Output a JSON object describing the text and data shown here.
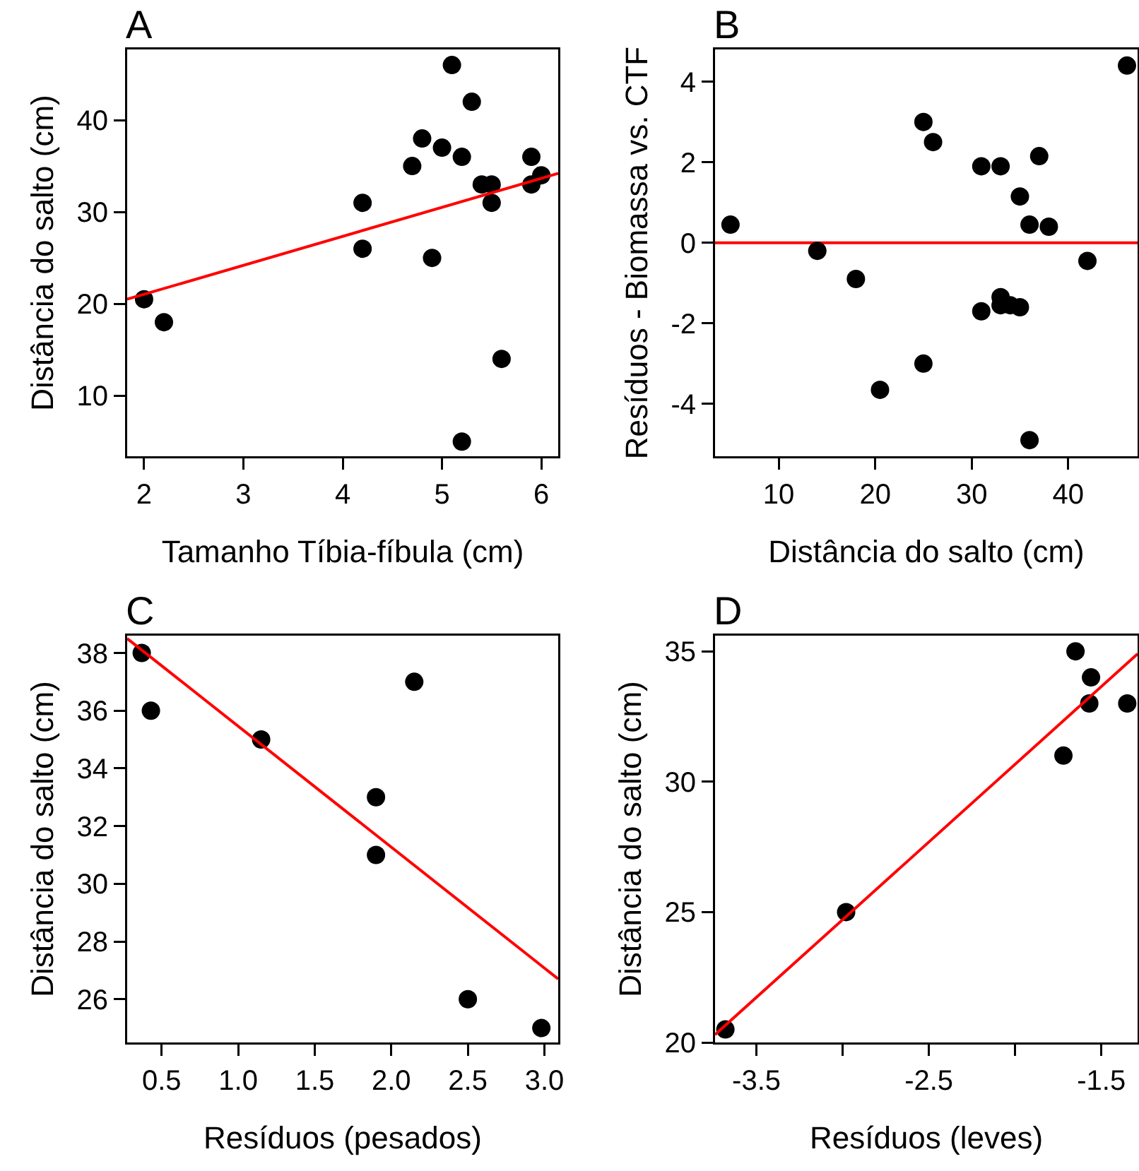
{
  "chart_data": [
    {
      "type": "scatter",
      "title": "A",
      "xlabel": "Tamanho Tíbia-fíbula (cm)",
      "ylabel": "Distância do salto (cm)",
      "xlim": [
        1.83,
        6.17
      ],
      "ylim": [
        3.4,
        47.7
      ],
      "xticks": [
        2,
        3,
        4,
        5,
        6
      ],
      "yticks": [
        10,
        20,
        30,
        40
      ],
      "series": [
        {
          "marker": "circle",
          "color": "#000000",
          "x": [
            2.0,
            2.2,
            4.2,
            4.2,
            4.7,
            4.8,
            4.9,
            5.0,
            5.1,
            5.2,
            5.2,
            5.3,
            5.4,
            5.5,
            5.5,
            5.6,
            5.9,
            5.9,
            6.0
          ],
          "values": [
            20.5,
            18,
            31,
            26,
            35,
            38,
            25,
            37,
            46,
            36,
            5,
            42,
            33,
            33,
            31,
            14,
            36,
            33,
            34
          ]
        },
        {
          "type": "line",
          "marker": "none",
          "color": "#ff0000",
          "x": [
            1.83,
            6.17
          ],
          "values": [
            20.5,
            34.2
          ]
        }
      ]
    },
    {
      "type": "scatter",
      "title": "B",
      "xlabel": "Distância do salto (cm)",
      "ylabel": "Resíduos - Biomassa vs. CTF",
      "xlim": [
        3.4,
        47.2
      ],
      "ylim": [
        -5.3,
        4.8
      ],
      "xticks": [
        10,
        20,
        30,
        40
      ],
      "yticks": [
        -4,
        -2,
        0,
        2,
        4
      ],
      "ref_lines": [
        {
          "axis": "y",
          "value": 0,
          "color": "#ff0000"
        }
      ],
      "series": [
        {
          "marker": "circle",
          "color": "#000000",
          "x": [
            5,
            14,
            18,
            20.5,
            25,
            25,
            26,
            31,
            31,
            33,
            33,
            33,
            34,
            35,
            35,
            36,
            36,
            37,
            38,
            42,
            46.1
          ],
          "values": [
            0.45,
            -0.2,
            -0.9,
            -3.65,
            3.0,
            -3.0,
            2.5,
            1.9,
            -1.7,
            1.9,
            -1.35,
            -1.55,
            -1.55,
            1.15,
            -1.6,
            0.45,
            -4.9,
            2.15,
            0.4,
            -0.45,
            4.4
          ]
        }
      ]
    },
    {
      "type": "scatter",
      "title": "C",
      "xlabel": "Resíduos (pesados)",
      "ylabel": "Distância do salto (cm)",
      "xlim": [
        0.275,
        3.09
      ],
      "ylim": [
        24.5,
        38.6
      ],
      "xticks": [
        {
          "value": 0.5,
          "label": "0.5"
        },
        {
          "value": 1,
          "label": "1.0"
        },
        {
          "value": 1.5,
          "label": "1.5"
        },
        {
          "value": 2,
          "label": "2.0"
        },
        {
          "value": 2.5,
          "label": "2.5"
        },
        {
          "value": 3,
          "label": "3.0"
        }
      ],
      "yticks": [
        26,
        28,
        30,
        32,
        34,
        36,
        38
      ],
      "series": [
        {
          "marker": "circle",
          "color": "#000000",
          "x": [
            0.37,
            0.43,
            1.15,
            1.9,
            1.9,
            2.15,
            2.5,
            2.98
          ],
          "values": [
            38,
            36,
            35,
            33,
            31,
            37,
            26,
            25
          ]
        },
        {
          "type": "line",
          "marker": "none",
          "color": "#ff0000",
          "x": [
            0.275,
            3.09
          ],
          "values": [
            38.5,
            26.7
          ]
        }
      ]
    },
    {
      "type": "scatter",
      "title": "D",
      "xlabel": "Resíduos (leves)",
      "ylabel": "Distância do salto (cm)",
      "xlim": [
        -3.74,
        -1.29
      ],
      "ylim": [
        20,
        35.6
      ],
      "xticks": [
        -3.5,
        {
          "value": -3,
          "label": null
        },
        -2.5,
        {
          "value": -2,
          "label": null
        },
        -1.5
      ],
      "yticks": [
        20,
        25,
        30,
        35
      ],
      "series": [
        {
          "marker": "circle",
          "color": "#000000",
          "x": [
            -3.68,
            -2.98,
            -1.72,
            -1.65,
            -1.56,
            -1.57,
            -1.35
          ],
          "values": [
            20.5,
            25,
            31,
            35,
            34,
            33,
            33
          ]
        },
        {
          "type": "line",
          "marker": "none",
          "color": "#ff0000",
          "x": [
            -3.74,
            -1.29
          ],
          "values": [
            20.3,
            34.9
          ]
        }
      ]
    }
  ]
}
